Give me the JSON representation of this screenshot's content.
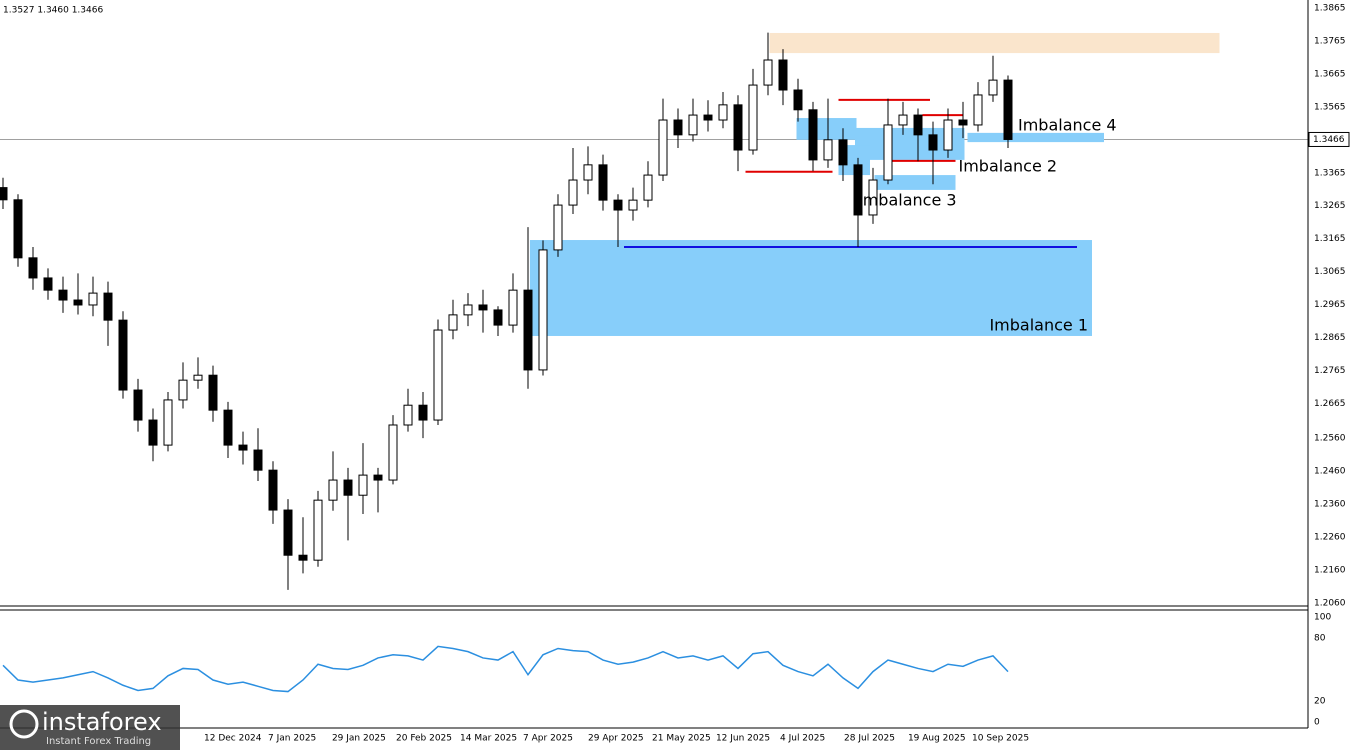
{
  "chart_data": {
    "type": "candlestick",
    "header": "1.3527 1.3460 1.3466",
    "xlim": [
      -0.2,
      87
    ],
    "xticks": [
      {
        "value": 13.4,
        "label": "12 Dec 2024"
      },
      {
        "value": 17.67,
        "label": "7 Jan 2025"
      },
      {
        "value": 21.93,
        "label": "29 Jan 2025"
      },
      {
        "value": 26.2,
        "label": "20 Feb 2025"
      },
      {
        "value": 30.47,
        "label": "14 Mar 2025"
      },
      {
        "value": 34.67,
        "label": "7 Apr 2025"
      },
      {
        "value": 39,
        "label": "29 Apr 2025"
      },
      {
        "value": 43.27,
        "label": "21 May 2025"
      },
      {
        "value": 47.53,
        "label": "12 Jun 2025"
      },
      {
        "value": 51.8,
        "label": "4 Jul 2025"
      },
      {
        "value": 56.07,
        "label": "28 Jul 2025"
      },
      {
        "value": 60.33,
        "label": "19 Aug 2025"
      },
      {
        "value": 64.6,
        "label": "10 Sep 2025"
      }
    ],
    "ylim": [
      1.2051,
      1.3889
    ],
    "yticks": [
      1.3865,
      1.3765,
      1.3665,
      1.3565,
      1.3365,
      1.3265,
      1.3165,
      1.3065,
      1.2965,
      1.2865,
      1.2765,
      1.2665,
      {
        "value": 1.256,
        "label": "1.2560"
      },
      {
        "value": 1.246,
        "label": "1.2460"
      },
      {
        "value": 1.236,
        "label": "1.2360"
      },
      {
        "value": 1.226,
        "label": "1.2260"
      },
      {
        "value": 1.216,
        "label": "1.2160"
      },
      {
        "value": 1.206,
        "label": "1.2060"
      }
    ],
    "grid": true,
    "current_price": 1.3466,
    "up_color": "#ffffff",
    "down_color": "#000000",
    "open": [
      1.332,
      1.3283,
      1.3107,
      1.3046,
      1.3009,
      1.2979,
      1.2964,
      1.3,
      1.2918,
      1.2706,
      1.2615,
      1.2539,
      1.2676,
      1.2736,
      1.2751,
      1.2645,
      1.2539,
      1.2524,
      1.2463,
      1.2342,
      1.2205,
      1.219,
      1.2372,
      1.2433,
      1.2387,
      1.2448,
      1.2433,
      1.26,
      1.266,
      1.2615,
      1.2888,
      1.2934,
      1.2964,
      1.2949,
      1.2903,
      1.3009,
      1.2767,
      1.3131,
      1.3267,
      1.3343,
      1.3389,
      1.3282,
      1.3252,
      1.3282,
      1.3358,
      1.3525,
      1.348,
      1.354,
      1.3525,
      1.3571,
      1.3434,
      1.3631,
      1.3707,
      1.3616,
      1.3556,
      1.3404,
      1.3465,
      1.3389,
      1.3237,
      1.3343,
      1.351,
      1.354,
      1.348,
      1.3434,
      1.3525,
      1.351,
      1.3601,
      1.3646
    ],
    "high": [
      1.335,
      1.33,
      1.314,
      1.3075,
      1.305,
      1.306,
      1.305,
      1.3035,
      1.2945,
      1.274,
      1.265,
      1.27,
      1.279,
      1.2805,
      1.278,
      1.267,
      1.258,
      1.259,
      1.249,
      1.2375,
      1.232,
      1.24,
      1.252,
      1.247,
      1.2545,
      1.247,
      1.263,
      1.271,
      1.27,
      1.292,
      1.298,
      1.3,
      1.301,
      1.296,
      1.306,
      1.32,
      1.316,
      1.33,
      1.344,
      1.3445,
      1.342,
      1.33,
      1.332,
      1.34,
      1.359,
      1.356,
      1.359,
      1.3585,
      1.361,
      1.36,
      1.368,
      1.379,
      1.374,
      1.365,
      1.358,
      1.359,
      1.35,
      1.341,
      1.338,
      1.359,
      1.358,
      1.356,
      1.352,
      1.356,
      1.358,
      1.364,
      1.372,
      1.366
    ],
    "low": [
      1.3255,
      1.308,
      1.301,
      1.298,
      1.294,
      1.2935,
      1.293,
      1.284,
      1.268,
      1.258,
      1.249,
      1.252,
      1.265,
      1.271,
      1.261,
      1.25,
      1.248,
      1.243,
      1.23,
      1.21,
      1.215,
      1.217,
      1.234,
      1.225,
      1.233,
      1.2335,
      1.242,
      1.258,
      1.256,
      1.26,
      1.286,
      1.29,
      1.288,
      1.287,
      1.288,
      1.271,
      1.275,
      1.311,
      1.324,
      1.33,
      1.325,
      1.314,
      1.322,
      1.326,
      1.334,
      1.344,
      1.346,
      1.349,
      1.35,
      1.337,
      1.342,
      1.36,
      1.357,
      1.352,
      1.337,
      1.338,
      1.334,
      1.314,
      1.321,
      1.333,
      1.348,
      1.34,
      1.333,
      1.341,
      1.347,
      1.349,
      1.358,
      1.344
    ],
    "close": [
      1.3283,
      1.3107,
      1.3046,
      1.3009,
      1.2979,
      1.2964,
      1.3,
      1.2918,
      1.2706,
      1.2615,
      1.2539,
      1.2676,
      1.2736,
      1.2751,
      1.2645,
      1.2539,
      1.2524,
      1.2463,
      1.2342,
      1.2205,
      1.219,
      1.2372,
      1.2433,
      1.2387,
      1.2448,
      1.2433,
      1.26,
      1.266,
      1.2615,
      1.2888,
      1.2934,
      1.2964,
      1.2949,
      1.2903,
      1.3009,
      1.2767,
      1.3131,
      1.3267,
      1.3343,
      1.3389,
      1.3282,
      1.3252,
      1.3282,
      1.3358,
      1.3525,
      1.348,
      1.354,
      1.3525,
      1.3571,
      1.3434,
      1.3631,
      1.3707,
      1.3616,
      1.3556,
      1.3404,
      1.3465,
      1.3389,
      1.3237,
      1.3343,
      1.351,
      1.354,
      1.348,
      1.3434,
      1.3525,
      1.351,
      1.3601,
      1.3646,
      1.3466
    ],
    "zones": [
      {
        "x_start": 51.1,
        "x_end": 81.1,
        "top": 1.3789,
        "bottom": 1.3728,
        "color": "#fae5cc"
      },
      {
        "label": "Imbalance 1",
        "x_start": 35.13,
        "x_end": 72.6,
        "top": 1.3161,
        "bottom": 1.287,
        "color": "#87cefa"
      },
      {
        "x_start": 52.9,
        "x_end": 56.9,
        "top": 1.3531,
        "bottom": 1.3465,
        "color": "#87cefa"
      },
      {
        "x_start": 56.8,
        "x_end": 64.1,
        "top": 1.3501,
        "bottom": 1.3404,
        "color": "#87cefa"
      },
      {
        "label": "Imbalance 2",
        "x_start": 58.1,
        "x_end": 63.5,
        "top": 1.3358,
        "bottom": 1.3313,
        "color": "#87cefa"
      },
      {
        "label": "Imbalance 3",
        "x_start": 55.7,
        "x_end": 57.8,
        "top": 1.3449,
        "bottom": 1.3358,
        "color": "#87cefa"
      },
      {
        "label": "Imbalance 4",
        "x_start": 64.3,
        "x_end": 73.4,
        "top": 1.3486,
        "bottom": 1.3458,
        "color": "#87cefa"
      }
    ],
    "levels": [
      {
        "y": 1.314,
        "x_start": 41.4,
        "x_end": 71.6,
        "color": "#1010e0"
      },
      {
        "y": 1.3586,
        "x_start": 55.7,
        "x_end": 61.8,
        "color": "#e00000"
      },
      {
        "y": 1.3368,
        "x_start": 49.5,
        "x_end": 55.3,
        "color": "#e00000"
      },
      {
        "y": 1.3401,
        "x_start": 58.8,
        "x_end": 63.5,
        "color": "#e00000"
      },
      {
        "y": 1.354,
        "x_start": 61.3,
        "x_end": 64.0,
        "color": "#e00000"
      }
    ],
    "indicator": {
      "color": "#2b8fe0",
      "ylim": [
        -5.7,
        105.7
      ],
      "yticks": [
        100,
        80,
        20,
        0
      ],
      "values": [
        54,
        40,
        38,
        40,
        42,
        45,
        48,
        42,
        35,
        30,
        32,
        44,
        51,
        50,
        40,
        36,
        38,
        34,
        30,
        29,
        40,
        55,
        51,
        50,
        54,
        61,
        64,
        63,
        59,
        72,
        70,
        67,
        61,
        59,
        67,
        45,
        64,
        70,
        68,
        67,
        59,
        55,
        57,
        61,
        67,
        61,
        63,
        59,
        63,
        51,
        65,
        67,
        54,
        48,
        44,
        55,
        42,
        32,
        48,
        59,
        55,
        51,
        48,
        55,
        53,
        59,
        63,
        48
      ]
    }
  },
  "logo": {
    "name": "instaforex",
    "tagline": "Instant Forex Trading"
  }
}
